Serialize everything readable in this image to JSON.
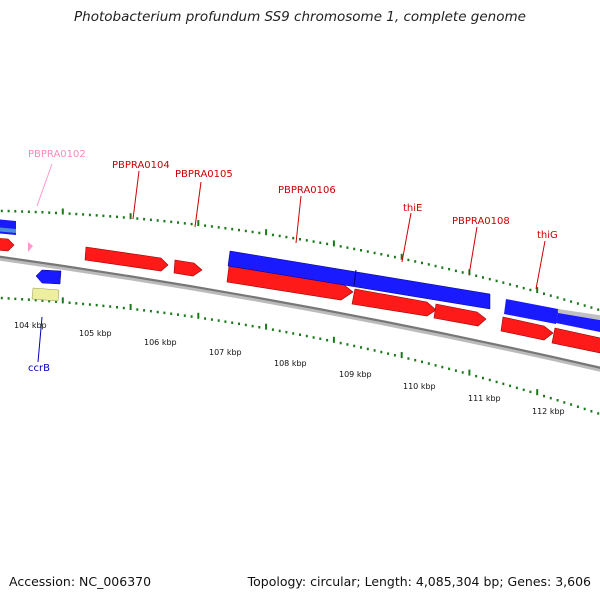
{
  "title": "Photobacterium profundum SS9 chromosome 1, complete genome",
  "footer": {
    "accession": "Accession: NC_006370",
    "stats": "Topology: circular; Length: 4,085,304 bp; Genes: 3,606"
  },
  "colors": {
    "forward_gene": "#ff1a1a",
    "reverse_gene": "#1a1aff",
    "pseudogene": "#ff99cc",
    "trna": "#eeeea0",
    "backbone": "#888888",
    "tick": "#1a7a1a",
    "label_red": "#cc0000",
    "label_pink": "#ff88bb",
    "label_blue": "#0000bb"
  },
  "scale_labels": [
    "104 kbp",
    "105 kbp",
    "106 kbp",
    "107 kbp",
    "108 kbp",
    "109 kbp",
    "110 kbp",
    "111 kbp",
    "112 kbp"
  ],
  "gene_labels": [
    {
      "text": "PBPRA0102",
      "kind": "pink"
    },
    {
      "text": "PBPRA0104",
      "kind": "red"
    },
    {
      "text": "PBPRA0105",
      "kind": "red"
    },
    {
      "text": "PBPRA0106",
      "kind": "red"
    },
    {
      "text": "thiE",
      "kind": "red"
    },
    {
      "text": "PBPRA0108",
      "kind": "red"
    },
    {
      "text": "thiG",
      "kind": "red"
    },
    {
      "text": "ccrB",
      "kind": "blue"
    }
  ]
}
